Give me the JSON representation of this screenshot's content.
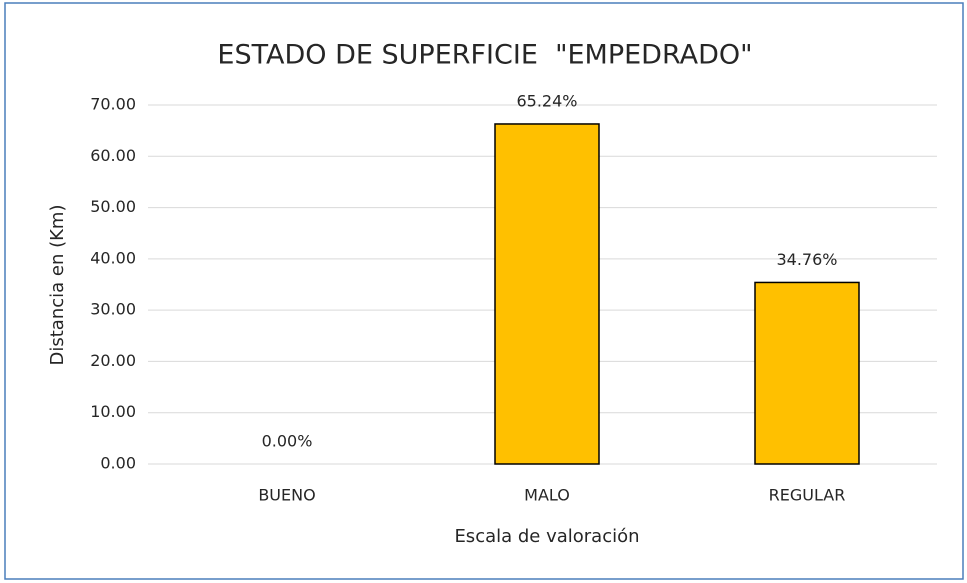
{
  "chart_data": {
    "type": "bar",
    "title": "ESTADO DE SUPERFICIE  \"EMPEDRADO\"",
    "x_label": "Escala de valoración",
    "y_label": "Distancia en (Km)",
    "categories": [
      "BUENO",
      "MALO",
      "REGULAR"
    ],
    "values": [
      0,
      66.3,
      35.4
    ],
    "annotations": [
      "0.00%",
      "65.24%",
      "34.76%"
    ],
    "color": "#ffc000",
    "ylim": [
      0,
      70
    ],
    "yticks": [
      {
        "value": 0,
        "label": "0.00"
      },
      {
        "value": 10,
        "label": "10.00"
      },
      {
        "value": 20,
        "label": "20.00"
      },
      {
        "value": 30,
        "label": "30.00"
      },
      {
        "value": 40,
        "label": "40.00"
      },
      {
        "value": 50,
        "label": "50.00"
      },
      {
        "value": 60,
        "label": "60.00"
      },
      {
        "value": 70,
        "label": "70.00"
      }
    ],
    "grid": true
  }
}
